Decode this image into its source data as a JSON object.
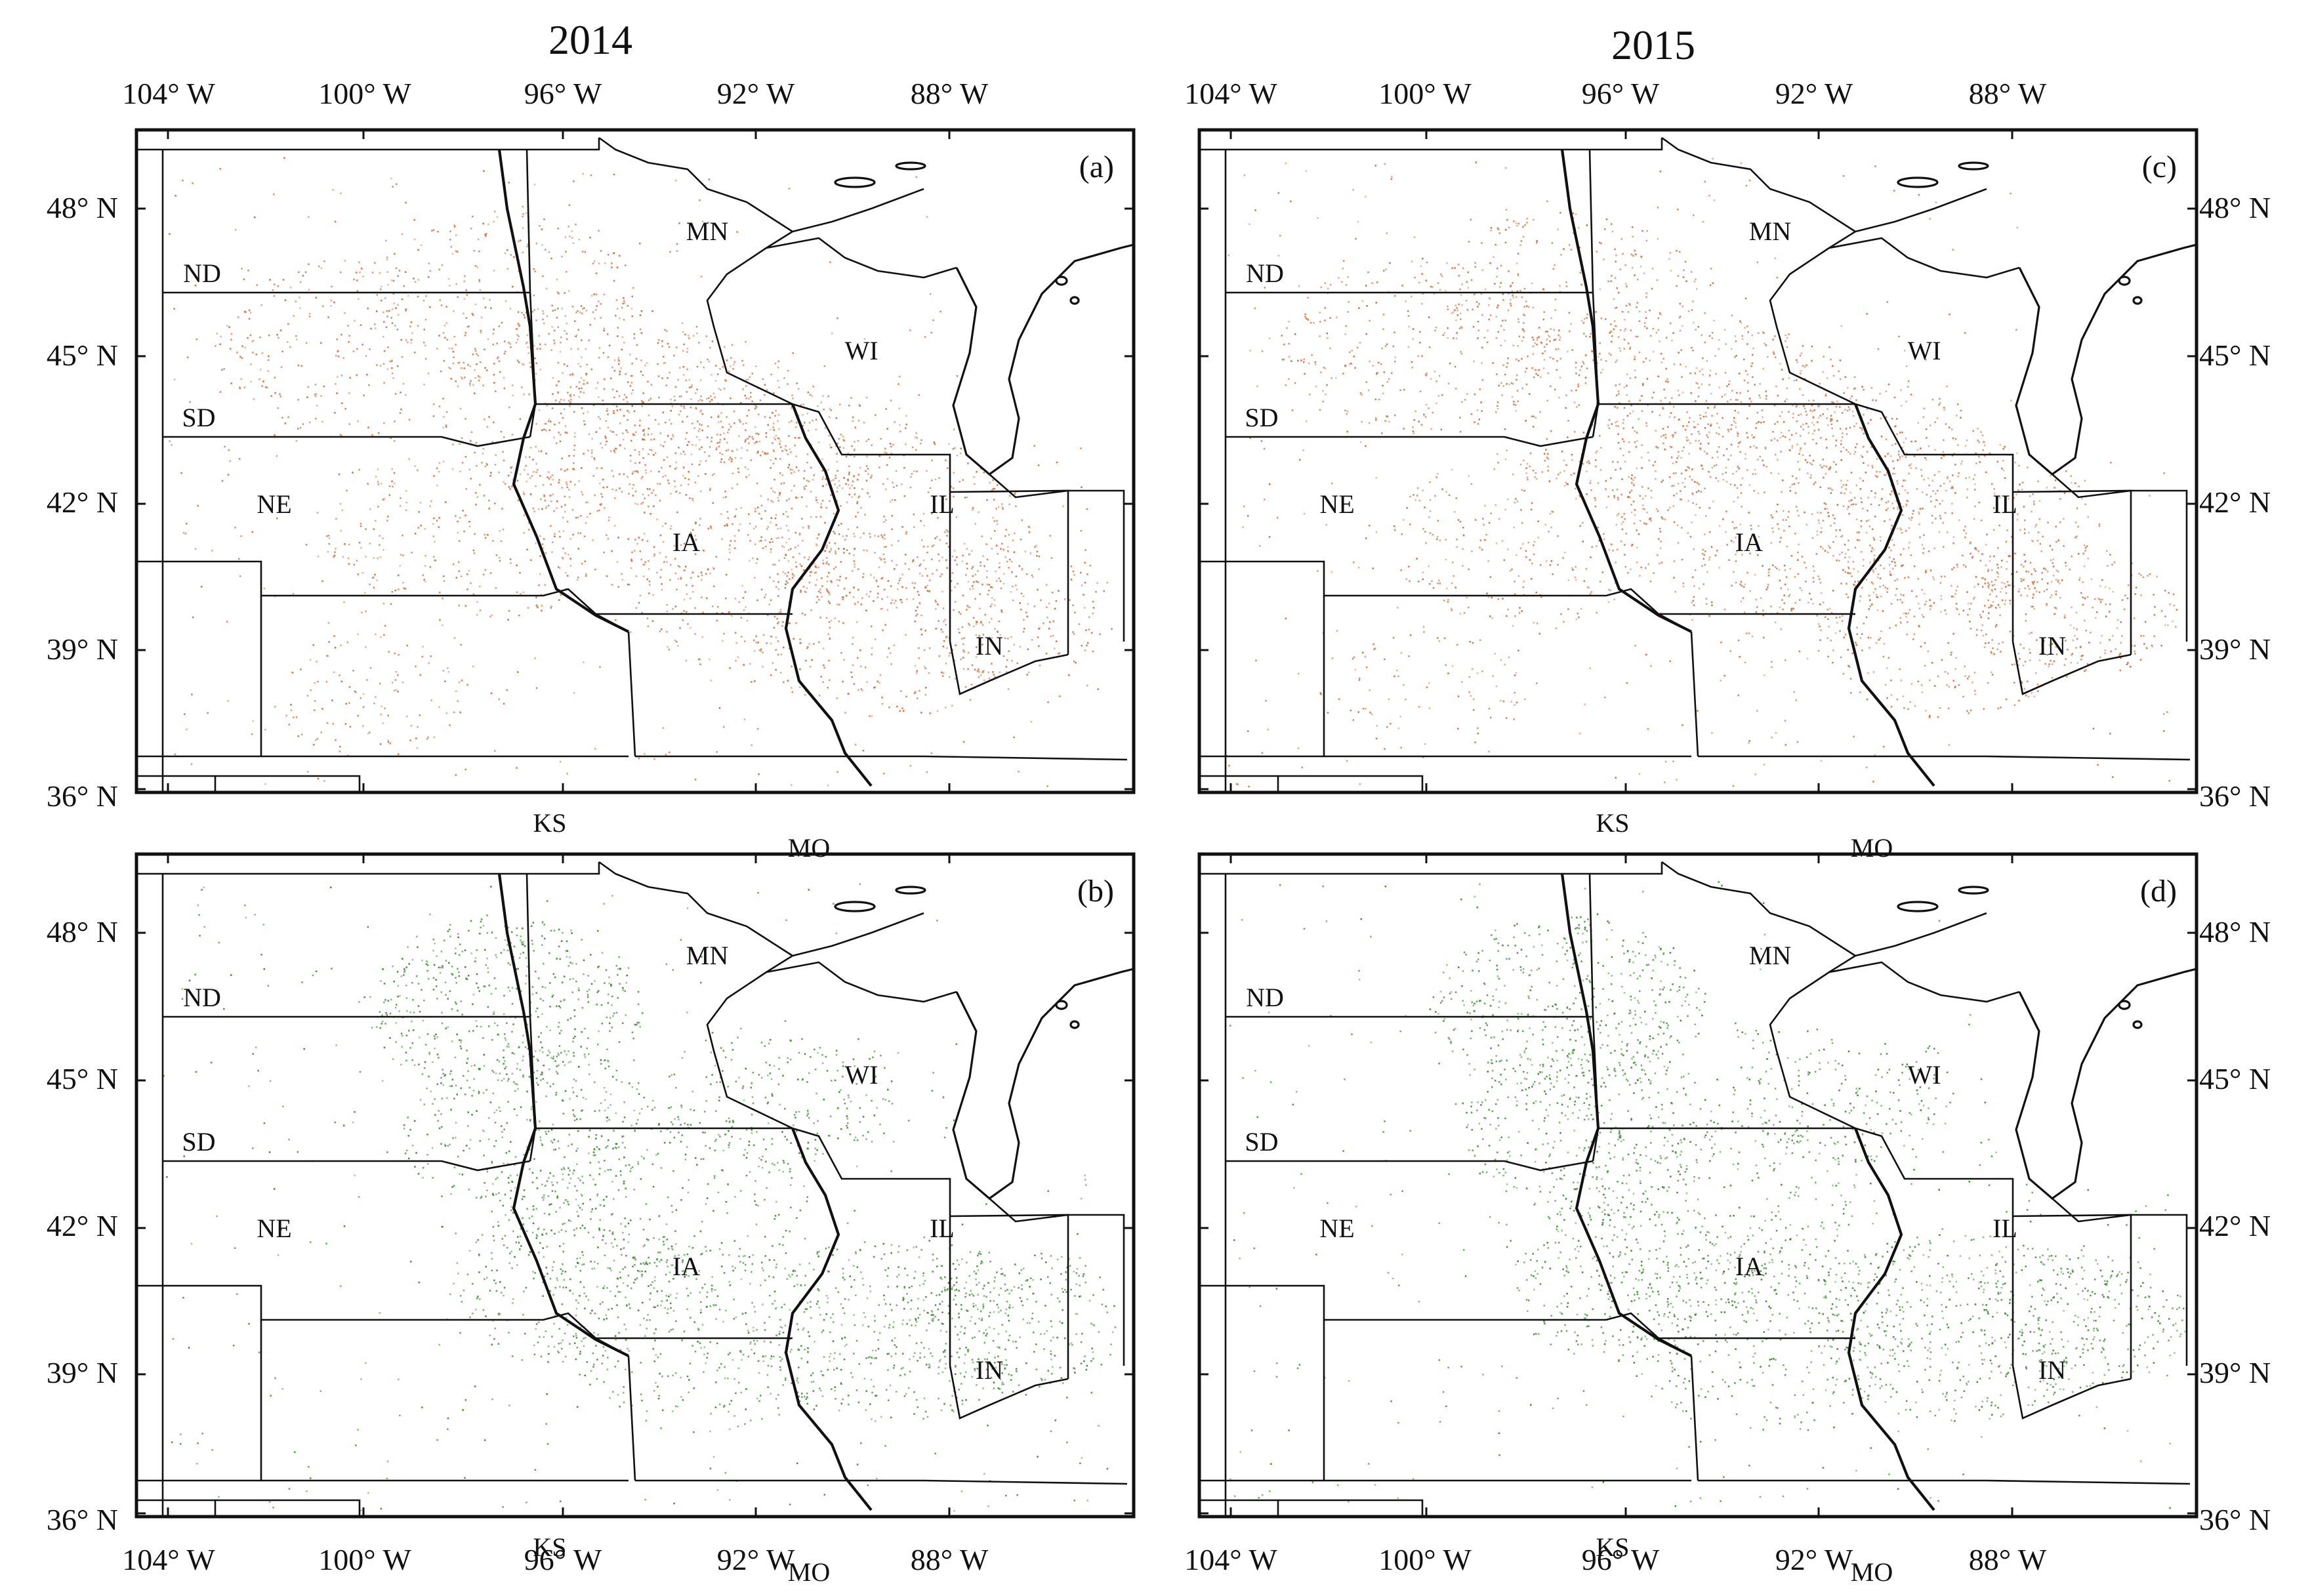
{
  "columns": [
    {
      "title": "2014"
    },
    {
      "title": "2015"
    }
  ],
  "lon_labels": [
    "104° W",
    "100° W",
    "96° W",
    "92° W",
    "88° W"
  ],
  "lat_labels": [
    "36° N",
    "39° N",
    "42° N",
    "45° N",
    "48° N"
  ],
  "panels": [
    {
      "label": "(a)",
      "year": "2014",
      "color": "#c8703e",
      "seed": 11
    },
    {
      "label": "(b)",
      "year": "2014",
      "color": "#3a8a2e",
      "seed": 23
    },
    {
      "label": "(c)",
      "year": "2015",
      "color": "#c8703e",
      "seed": 37
    },
    {
      "label": "(d)",
      "year": "2015",
      "color": "#3a8a2e",
      "seed": 53
    }
  ],
  "states": [
    {
      "abbr": "ND"
    },
    {
      "abbr": "SD"
    },
    {
      "abbr": "NE"
    },
    {
      "abbr": "KS"
    },
    {
      "abbr": "MN"
    },
    {
      "abbr": "IA"
    },
    {
      "abbr": "MO"
    },
    {
      "abbr": "WI"
    },
    {
      "abbr": "IL"
    },
    {
      "abbr": "IN"
    }
  ]
}
